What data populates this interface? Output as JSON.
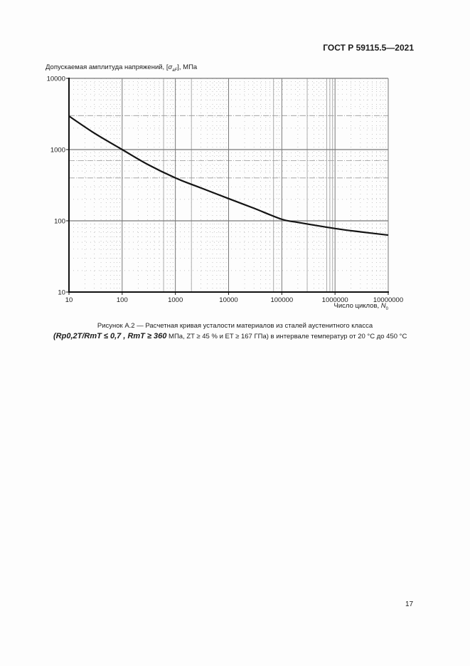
{
  "header": {
    "document_id": "ГОСТ Р 59115.5—2021"
  },
  "figure": {
    "caption_line1": "Рисунок А.2 — Расчетная кривая усталости материалов из сталей аустенитного класса",
    "caption_formula": "(Rp0,2T/RmT ≤ 0,7 , RmT ≥ 360",
    "caption_line2_rest": "МПа, ZT ≥ 45 % и ET ≥ 167 ГПа) в интервале температур от 20 °С до 450 °С"
  },
  "page": {
    "number": "17"
  },
  "chart_data": {
    "type": "line",
    "title": "",
    "ylabel": "Допускаемая амплитуда напряжений, [σaF], МПа",
    "xlabel": "Число циклов, N0",
    "x_scale": "log",
    "y_scale": "log",
    "xlim": [
      10,
      10000000
    ],
    "ylim": [
      10,
      10000
    ],
    "x_ticks": [
      "10",
      "100",
      "1000",
      "10000",
      "100000",
      "1000000",
      "10000000"
    ],
    "y_ticks": [
      "10",
      "100",
      "1000",
      "10000"
    ],
    "grid": true,
    "legend": null,
    "series": [
      {
        "name": "Расчетная кривая усталости",
        "x": [
          10,
          30,
          100,
          300,
          1000,
          3000,
          10000,
          30000,
          100000,
          200000,
          1000000,
          3000000,
          10000000
        ],
        "y": [
          2950,
          1700,
          1000,
          620,
          400,
          290,
          205,
          150,
          105,
          95,
          78,
          70,
          63
        ]
      }
    ]
  }
}
